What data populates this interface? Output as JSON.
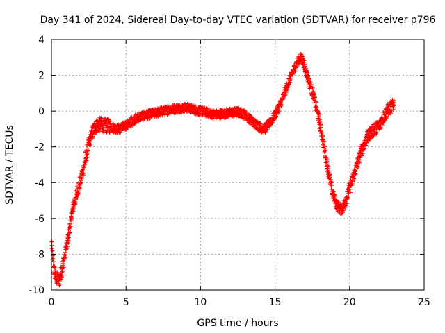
{
  "chart_data": {
    "type": "scatter",
    "title": "Day 341 of 2024, Sidereal Day-to-day VTEC variation (SDTVAR) for receiver p796",
    "xlabel": "GPS time / hours",
    "ylabel": "SDTVAR / TECUs",
    "xlim": [
      0,
      25
    ],
    "ylim": [
      -10,
      4
    ],
    "xticks": [
      0,
      5,
      10,
      15,
      20,
      25
    ],
    "yticks": [
      -10,
      -8,
      -6,
      -4,
      -2,
      0,
      2,
      4
    ],
    "grid": true,
    "marker": "+",
    "colors": {
      "series": "#ff0000",
      "grid": "#a0a0a0",
      "axis": "#000000"
    },
    "series": [
      {
        "name": "SDTVAR",
        "bands": [
          {
            "start": 0.0,
            "end": 4.0,
            "points": [
              [
                0.0,
                -7.4
              ],
              [
                0.15,
                -8.8
              ],
              [
                0.3,
                -9.3
              ],
              [
                0.5,
                -9.5
              ],
              [
                0.7,
                -8.9
              ],
              [
                0.9,
                -8.0
              ],
              [
                1.1,
                -7.2
              ],
              [
                1.3,
                -6.2
              ],
              [
                1.5,
                -5.2
              ],
              [
                1.7,
                -4.6
              ],
              [
                1.9,
                -4.0
              ],
              [
                2.1,
                -3.4
              ],
              [
                2.3,
                -2.6
              ],
              [
                2.5,
                -1.9
              ],
              [
                2.7,
                -1.3
              ],
              [
                2.9,
                -0.9
              ],
              [
                3.1,
                -0.8
              ],
              [
                3.3,
                -0.75
              ],
              [
                3.6,
                -0.8
              ],
              [
                4.0,
                -0.85
              ]
            ],
            "spread": 0.8
          },
          {
            "start": 4.0,
            "end": 14.0,
            "points": [
              [
                4.0,
                -0.9
              ],
              [
                4.5,
                -1.0
              ],
              [
                5.0,
                -0.8
              ],
              [
                5.5,
                -0.5
              ],
              [
                6.0,
                -0.3
              ],
              [
                6.5,
                -0.2
              ],
              [
                7.0,
                -0.1
              ],
              [
                7.5,
                0.0
              ],
              [
                8.0,
                0.1
              ],
              [
                8.5,
                0.15
              ],
              [
                9.0,
                0.2
              ],
              [
                9.5,
                0.1
              ],
              [
                10.0,
                0.0
              ],
              [
                10.5,
                -0.1
              ],
              [
                11.0,
                -0.2
              ],
              [
                11.5,
                -0.15
              ],
              [
                12.0,
                -0.1
              ],
              [
                12.5,
                -0.05
              ],
              [
                13.0,
                -0.2
              ],
              [
                13.5,
                -0.6
              ],
              [
                14.0,
                -0.9
              ]
            ],
            "spread": 0.5
          },
          {
            "start": 14.0,
            "end": 16.8,
            "points": [
              [
                14.0,
                -0.9
              ],
              [
                14.3,
                -1.0
              ],
              [
                14.6,
                -0.7
              ],
              [
                15.0,
                -0.2
              ],
              [
                15.3,
                0.3
              ],
              [
                15.6,
                0.9
              ],
              [
                15.9,
                1.6
              ],
              [
                16.2,
                2.2
              ],
              [
                16.5,
                2.8
              ],
              [
                16.8,
                3.0
              ]
            ],
            "spread": 0.5
          },
          {
            "start": 16.8,
            "end": 19.6,
            "points": [
              [
                16.8,
                3.0
              ],
              [
                17.0,
                2.4
              ],
              [
                17.3,
                1.6
              ],
              [
                17.6,
                0.8
              ],
              [
                17.9,
                -0.3
              ],
              [
                18.2,
                -1.6
              ],
              [
                18.5,
                -3.0
              ],
              [
                18.8,
                -4.4
              ],
              [
                19.1,
                -5.2
              ],
              [
                19.4,
                -5.5
              ],
              [
                19.6,
                -5.4
              ]
            ],
            "spread": 0.6
          },
          {
            "start": 19.6,
            "end": 23.0,
            "points": [
              [
                19.6,
                -5.3
              ],
              [
                19.9,
                -4.6
              ],
              [
                20.2,
                -3.8
              ],
              [
                20.5,
                -3.0
              ],
              [
                20.8,
                -2.2
              ],
              [
                21.1,
                -1.6
              ],
              [
                21.4,
                -1.2
              ],
              [
                21.7,
                -1.0
              ],
              [
                22.0,
                -0.8
              ],
              [
                22.3,
                -0.3
              ],
              [
                22.6,
                0.1
              ],
              [
                22.9,
                0.3
              ],
              [
                23.0,
                0.4
              ]
            ],
            "spread": 0.7
          }
        ]
      }
    ]
  }
}
